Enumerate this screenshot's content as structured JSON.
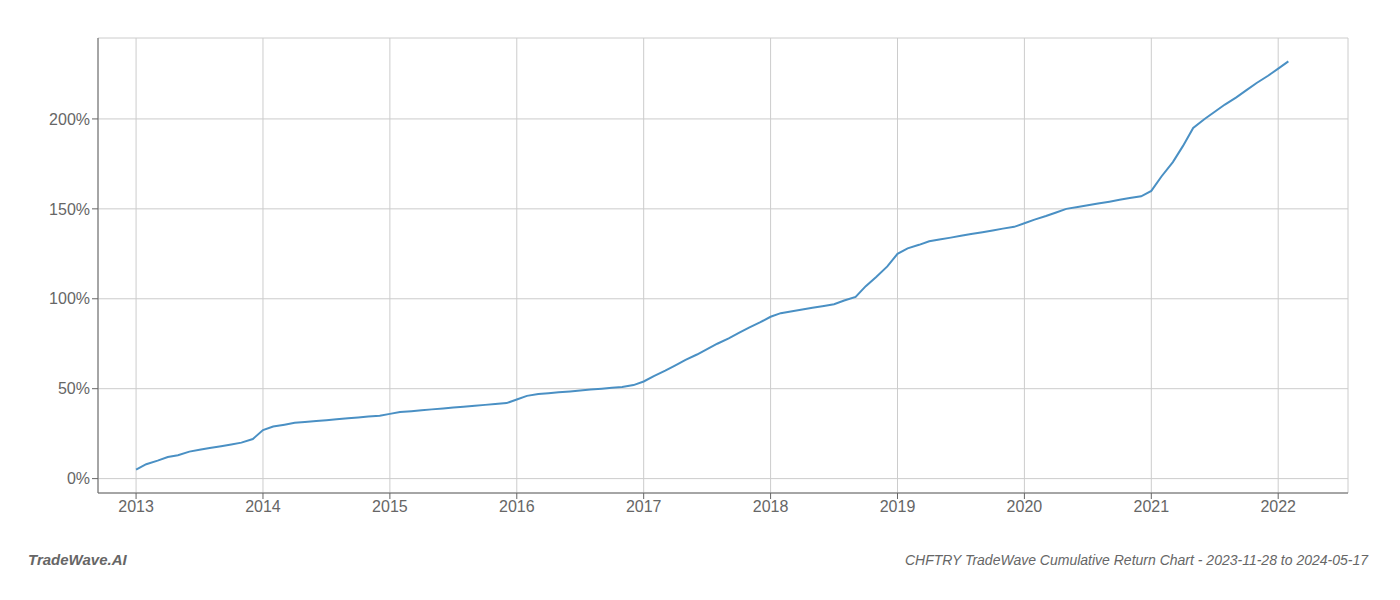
{
  "chart_data": {
    "type": "line",
    "title": "CHFTRY TradeWave Cumulative Return Chart - 2023-11-28 to 2024-05-17",
    "annotations": [
      "TradeWave.AI"
    ],
    "color": "#4a90c4",
    "grid": true,
    "x": [
      2013.0,
      2013.08,
      2013.17,
      2013.25,
      2013.33,
      2013.42,
      2013.5,
      2013.58,
      2013.67,
      2013.75,
      2013.83,
      2013.92,
      2014.0,
      2014.08,
      2014.17,
      2014.25,
      2014.33,
      2014.42,
      2014.5,
      2014.58,
      2014.67,
      2014.75,
      2014.83,
      2014.92,
      2015.0,
      2015.08,
      2015.17,
      2015.25,
      2015.33,
      2015.42,
      2015.5,
      2015.58,
      2015.67,
      2015.75,
      2015.83,
      2015.92,
      2016.0,
      2016.08,
      2016.17,
      2016.25,
      2016.33,
      2016.42,
      2016.5,
      2016.58,
      2016.67,
      2016.75,
      2016.83,
      2016.92,
      2017.0,
      2017.08,
      2017.17,
      2017.25,
      2017.33,
      2017.42,
      2017.5,
      2017.58,
      2017.67,
      2017.75,
      2017.83,
      2017.92,
      2018.0,
      2018.08,
      2018.17,
      2018.25,
      2018.33,
      2018.42,
      2018.5,
      2018.58,
      2018.67,
      2018.75,
      2018.83,
      2018.92,
      2019.0,
      2019.08,
      2019.17,
      2019.25,
      2019.33,
      2019.42,
      2019.5,
      2019.58,
      2019.67,
      2019.75,
      2019.83,
      2019.92,
      2020.0,
      2020.08,
      2020.17,
      2020.25,
      2020.33,
      2020.42,
      2020.5,
      2020.58,
      2020.67,
      2020.75,
      2020.83,
      2020.92,
      2021.0,
      2021.08,
      2021.17,
      2021.25,
      2021.33,
      2021.42,
      2021.5,
      2021.58,
      2021.67,
      2021.75,
      2021.83,
      2021.92,
      2022.0,
      2022.08
    ],
    "values": [
      5,
      8,
      10,
      12,
      13,
      15,
      16,
      17,
      18,
      19,
      20,
      22,
      27,
      29,
      30,
      31,
      31.5,
      32,
      32.5,
      33,
      33.5,
      34,
      34.5,
      35,
      36,
      37,
      37.5,
      38,
      38.5,
      39,
      39.5,
      40,
      40.5,
      41,
      41.5,
      42,
      44,
      46,
      47,
      47.5,
      48,
      48.5,
      49,
      49.5,
      50,
      50.5,
      51,
      52,
      54,
      57,
      60,
      63,
      66,
      69,
      72,
      75,
      78,
      81,
      84,
      87,
      90,
      92,
      93,
      94,
      95,
      96,
      97,
      99,
      101,
      107,
      112,
      118,
      125,
      128,
      130,
      132,
      133,
      134,
      135,
      136,
      137,
      138,
      139,
      140,
      142,
      144,
      146,
      148,
      150,
      151,
      152,
      153,
      154,
      155,
      156,
      157,
      160,
      168,
      176,
      185,
      195,
      200,
      204,
      208,
      212,
      216,
      220,
      224,
      228,
      232
    ],
    "xlim": [
      2012.7,
      2022.55
    ],
    "xticks": [
      2013,
      2014,
      2015,
      2016,
      2017,
      2018,
      2019,
      2020,
      2021,
      2022
    ],
    "ylim": [
      -8,
      245
    ],
    "yticks": [
      {
        "value": 0,
        "label": "0%"
      },
      {
        "value": 50,
        "label": "50%"
      },
      {
        "value": 100,
        "label": "100%"
      },
      {
        "value": 150,
        "label": "150%"
      },
      {
        "value": 200,
        "label": "200%"
      }
    ]
  }
}
